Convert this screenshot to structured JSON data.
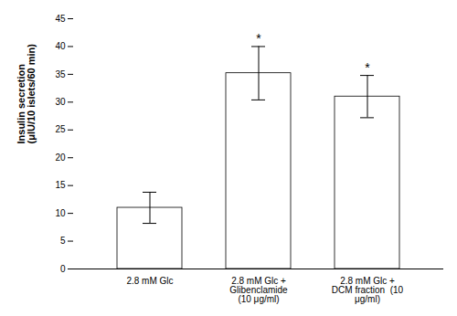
{
  "chart_data": {
    "type": "bar",
    "categories": [
      "2.8 mM Glc",
      "2.8 mM Glc +\nGlibenclamide\n(10 μg/ml)",
      "2.8 mM Glc +\nDCM fraction  (10\nμg/ml)"
    ],
    "values": [
      11.0,
      35.2,
      31.0
    ],
    "errors": [
      2.8,
      4.8,
      3.8
    ],
    "ylabel": "Insulin secretion\n(μIU/10 islets/60 min)",
    "ylim": [
      0,
      45
    ],
    "yticks": [
      0,
      5,
      10,
      15,
      20,
      25,
      30,
      35,
      40,
      45
    ],
    "grid": false,
    "annotations": [
      {
        "text": "*",
        "category": "2.8 mM Glc +\nGlibenclamide\n(10 μg/ml)"
      },
      {
        "text": "*",
        "category": "2.8 mM Glc +\nDCM fraction  (10\nμg/ml)"
      }
    ]
  }
}
